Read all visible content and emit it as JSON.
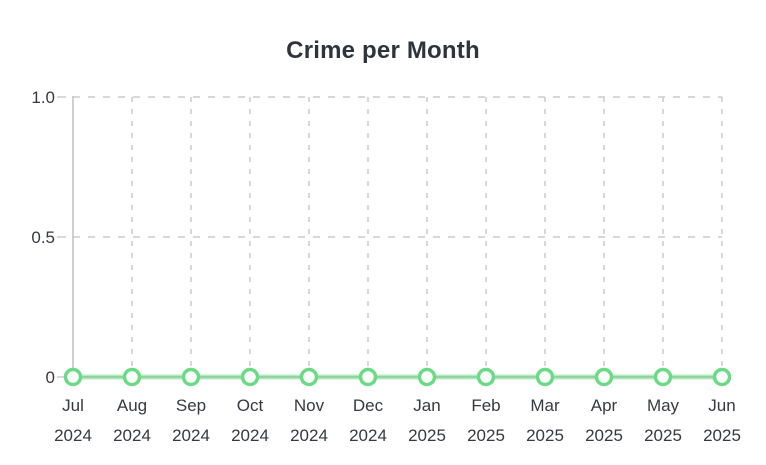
{
  "chart_data": {
    "type": "line",
    "title": "Crime per Month",
    "categories": [
      "Jul 2024",
      "Aug 2024",
      "Sep 2024",
      "Oct 2024",
      "Nov 2024",
      "Dec 2024",
      "Jan 2025",
      "Feb 2025",
      "Mar 2025",
      "Apr 2025",
      "May 2025",
      "Jun 2025"
    ],
    "values": [
      0,
      0,
      0,
      0,
      0,
      0,
      0,
      0,
      0,
      0,
      0,
      0
    ],
    "xlabel": "",
    "ylabel": "",
    "ylim": [
      0,
      1.0
    ],
    "yticks": [
      0,
      0.5,
      1.0
    ],
    "ytick_labels": [
      "0",
      "0.5",
      "1.0"
    ],
    "grid": "dashed",
    "legend": "none",
    "line_color": "#7ddf93",
    "marker_style": "open-circle",
    "marker_stroke_color": "#6ada85",
    "grid_color": "#cccccc",
    "axis_color": "#bfbfbf",
    "baseline_color": "#a5a5a5",
    "text_color": "#36393f",
    "title_color": "#2f333c"
  }
}
